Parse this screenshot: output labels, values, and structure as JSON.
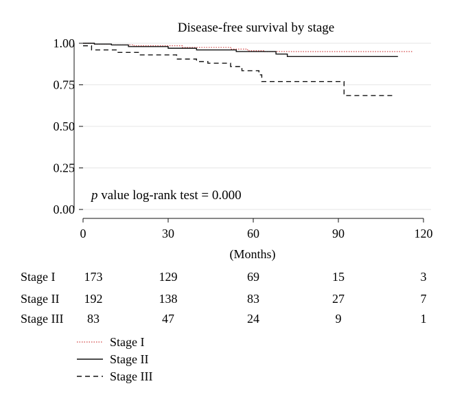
{
  "chart_data": {
    "type": "line",
    "subtype": "kaplan-meier step",
    "title": "Disease-free survival by stage",
    "xlabel": "(Months)",
    "ylabel": "",
    "xlim": [
      0,
      120
    ],
    "ylim": [
      0,
      1
    ],
    "x_ticks": [
      "0",
      "30",
      "60",
      "90",
      "120"
    ],
    "y_ticks": [
      "0.00",
      "0.25",
      "0.50",
      "0.75",
      "1.00"
    ],
    "grid": "horizontal",
    "annotation": {
      "italic": "p",
      "text": " value log-rank test = 0.000"
    },
    "series": [
      {
        "name": "Stage I",
        "style": "dotted",
        "color": "#d04040",
        "x": [
          0,
          4,
          10,
          18,
          35,
          52,
          58,
          64,
          116
        ],
        "y": [
          1.0,
          0.995,
          0.99,
          0.985,
          0.975,
          0.965,
          0.955,
          0.95,
          0.95
        ]
      },
      {
        "name": "Stage II",
        "style": "solid",
        "color": "#111111",
        "x": [
          0,
          4,
          10,
          16,
          30,
          40,
          54,
          68,
          72,
          111
        ],
        "y": [
          1.0,
          0.995,
          0.99,
          0.98,
          0.97,
          0.96,
          0.95,
          0.935,
          0.92,
          0.92
        ]
      },
      {
        "name": "Stage III",
        "style": "dashed",
        "color": "#111111",
        "x": [
          0,
          3,
          12,
          20,
          33,
          40,
          44,
          52,
          56,
          62,
          63,
          92,
          110
        ],
        "y": [
          0.985,
          0.96,
          0.945,
          0.93,
          0.905,
          0.89,
          0.88,
          0.86,
          0.835,
          0.81,
          0.77,
          0.685,
          0.685
        ]
      }
    ],
    "risk_table": {
      "rows": [
        {
          "label": "Stage I",
          "values": [
            "173",
            "129",
            "69",
            "15",
            "3"
          ]
        },
        {
          "label": "Stage II",
          "values": [
            "192",
            "138",
            "83",
            "27",
            "7"
          ]
        },
        {
          "label": "Stage III",
          "values": [
            "83",
            "47",
            "24",
            "9",
            "1"
          ]
        }
      ]
    },
    "legend": {
      "placement": "bottom-left",
      "entries": [
        "Stage I",
        "Stage II",
        "Stage III"
      ]
    }
  }
}
